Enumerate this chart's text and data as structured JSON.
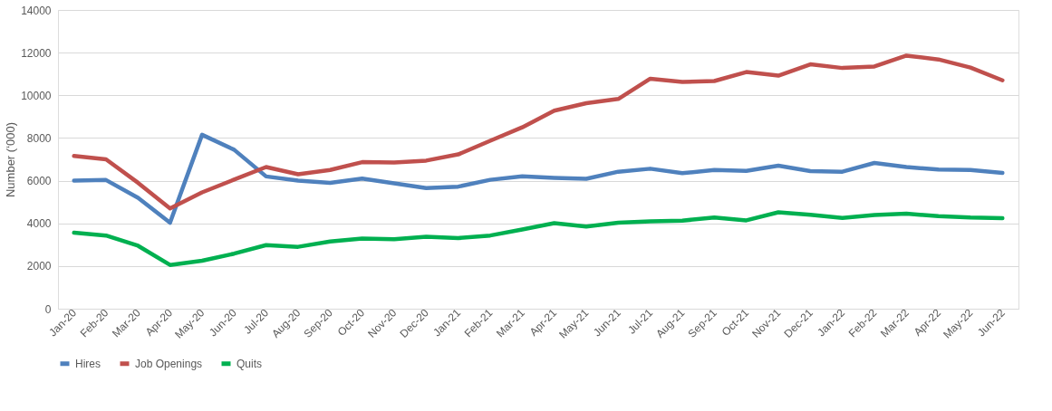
{
  "chart_data": {
    "type": "line",
    "ylabel": "Number (‘000)",
    "categories": [
      "Jan-20",
      "Feb-20",
      "Mar-20",
      "Apr-20",
      "May-20",
      "Jun-20",
      "Jul-20",
      "Aug-20",
      "Sep-20",
      "Oct-20",
      "Nov-20",
      "Dec-20",
      "Jan-21",
      "Feb-21",
      "Mar-21",
      "Apr-21",
      "May-21",
      "Jun-21",
      "Jul-21",
      "Aug-21",
      "Sep-21",
      "Oct-21",
      "Nov-21",
      "Dec-21",
      "Jan-22",
      "Feb-22",
      "Mar-22",
      "Apr-22",
      "May-22",
      "Jun-22"
    ],
    "series": [
      {
        "name": "Hires",
        "color": "#4f81bd",
        "values": [
          6000,
          6030,
          5200,
          4030,
          8150,
          7450,
          6200,
          6000,
          5900,
          6100,
          5880,
          5650,
          5720,
          6040,
          6200,
          6130,
          6090,
          6420,
          6560,
          6350,
          6500,
          6460,
          6700,
          6450,
          6420,
          6830,
          6640,
          6520,
          6500,
          6360
        ]
      },
      {
        "name": "Job Openings",
        "color": "#c0504d",
        "values": [
          7160,
          7000,
          5900,
          4700,
          5450,
          6050,
          6640,
          6300,
          6500,
          6870,
          6850,
          6940,
          7230,
          7870,
          8500,
          9280,
          9630,
          9830,
          10780,
          10630,
          10670,
          11090,
          10920,
          11450,
          11280,
          11350,
          11860,
          11680,
          11300,
          10700
        ]
      },
      {
        "name": "Quits",
        "color": "#00b050",
        "values": [
          3560,
          3430,
          2950,
          2050,
          2250,
          2580,
          2980,
          2900,
          3150,
          3290,
          3260,
          3370,
          3310,
          3430,
          3710,
          4010,
          3850,
          4030,
          4090,
          4130,
          4270,
          4140,
          4520,
          4400,
          4250,
          4390,
          4450,
          4340,
          4270,
          4240
        ]
      }
    ],
    "ylim": [
      0,
      14000
    ],
    "yticks": [
      0,
      2000,
      4000,
      6000,
      8000,
      10000,
      12000,
      14000
    ],
    "grid": "y",
    "legend": "bottom",
    "marker": "none",
    "line_style": "solid"
  }
}
